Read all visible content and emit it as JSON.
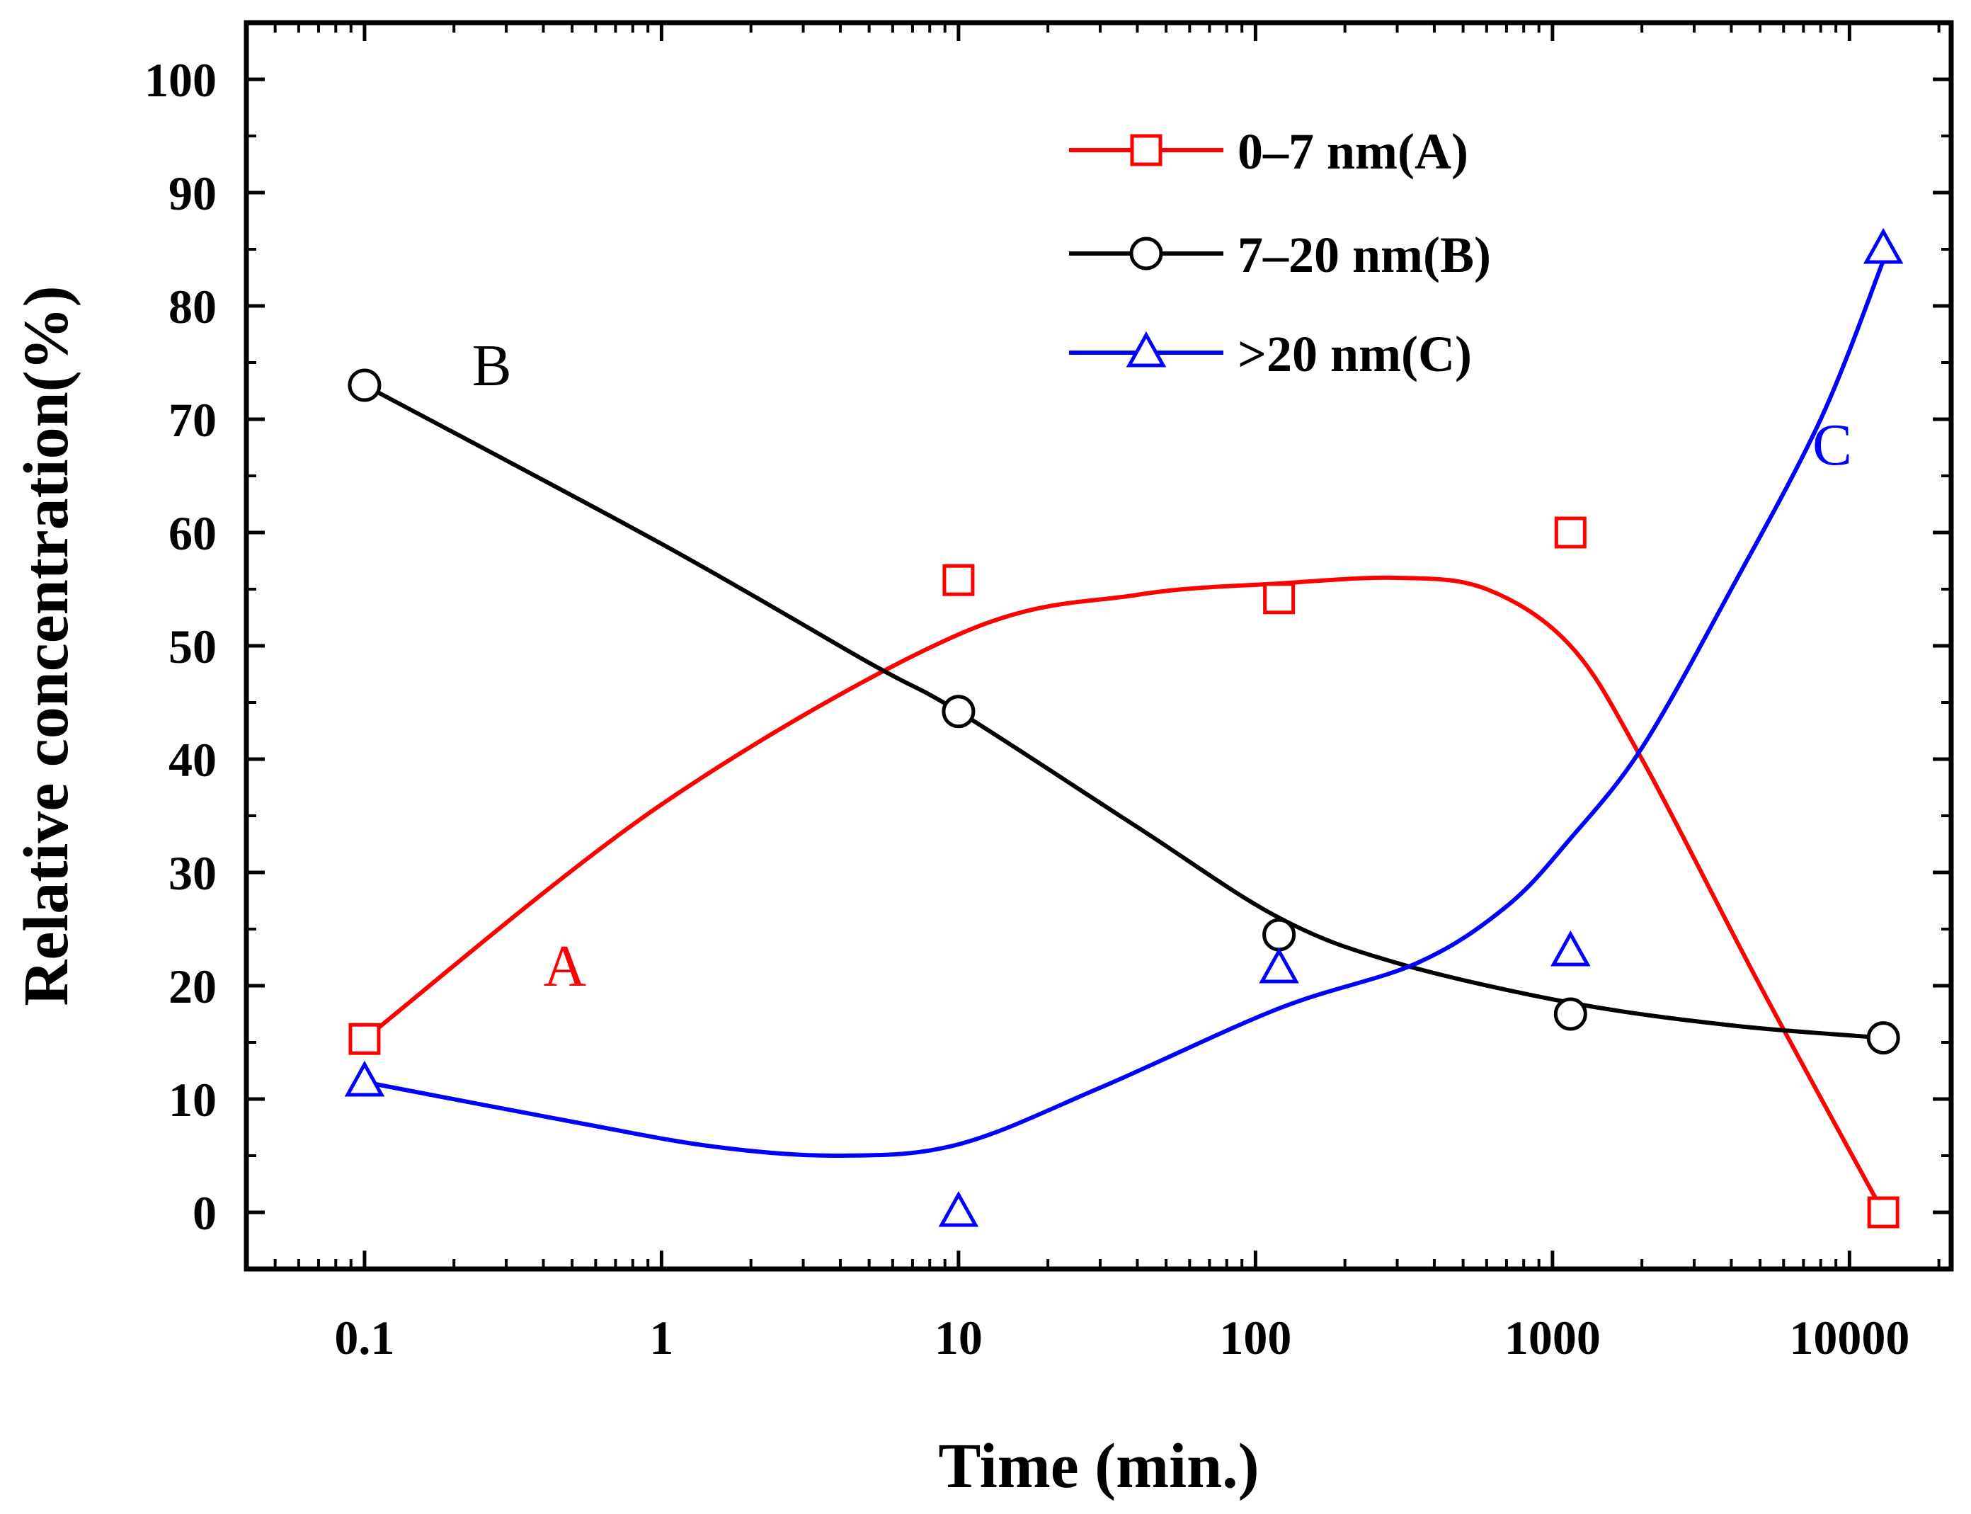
{
  "chart_data": {
    "type": "line",
    "title": "",
    "xlabel": "Time (min.)",
    "ylabel": "Relative concentration(%)",
    "xscale": "log",
    "xlim": [
      0.04,
      22000
    ],
    "ylim": [
      -5,
      105
    ],
    "xticks": [
      {
        "value": 0.1,
        "label": "0.1"
      },
      {
        "value": 1,
        "label": "1"
      },
      {
        "value": 10,
        "label": "10"
      },
      {
        "value": 100,
        "label": "100"
      },
      {
        "value": 1000,
        "label": "1000"
      },
      {
        "value": 10000,
        "label": "10000"
      }
    ],
    "yticks": [
      {
        "value": 0,
        "label": "0"
      },
      {
        "value": 10,
        "label": "10"
      },
      {
        "value": 20,
        "label": "20"
      },
      {
        "value": 30,
        "label": "30"
      },
      {
        "value": 40,
        "label": "40"
      },
      {
        "value": 50,
        "label": "50"
      },
      {
        "value": 60,
        "label": "60"
      },
      {
        "value": 70,
        "label": "70"
      },
      {
        "value": 80,
        "label": "80"
      },
      {
        "value": 90,
        "label": "90"
      },
      {
        "value": 100,
        "label": "100"
      }
    ],
    "legend_position": "top-right",
    "series": [
      {
        "name": "0–7 nm(A)",
        "curve_label": "A",
        "color": "#ff0000",
        "marker": "square",
        "x": [
          0.1,
          10,
          120,
          1150,
          13000
        ],
        "y": [
          15.3,
          55.8,
          54.2,
          60,
          0
        ],
        "fit_curve": [
          [
            0.1,
            15.3
          ],
          [
            1,
            36
          ],
          [
            10,
            51
          ],
          [
            40,
            54.5
          ],
          [
            120,
            55.5
          ],
          [
            300,
            56
          ],
          [
            600,
            55
          ],
          [
            1150,
            50
          ],
          [
            2000,
            40
          ],
          [
            5000,
            20
          ],
          [
            13000,
            0
          ]
        ]
      },
      {
        "name": "7–20 nm(B)",
        "curve_label": "B",
        "color": "#000000",
        "marker": "circle",
        "x": [
          0.1,
          10,
          120,
          1150,
          13000
        ],
        "y": [
          73,
          44.2,
          24.5,
          17.5,
          15.4
        ],
        "fit_curve": [
          [
            0.1,
            73
          ],
          [
            1,
            59
          ],
          [
            5,
            48.5
          ],
          [
            10,
            44.2
          ],
          [
            40,
            34
          ],
          [
            120,
            26
          ],
          [
            300,
            22
          ],
          [
            1150,
            18.5
          ],
          [
            4000,
            16.5
          ],
          [
            13000,
            15.4
          ]
        ]
      },
      {
        "name": ">20 nm(C)",
        "curve_label": "C",
        "color": "#0000ff",
        "marker": "triangle",
        "x": [
          0.1,
          10,
          120,
          1150,
          13000
        ],
        "y": [
          11.5,
          0,
          21.5,
          23,
          85
        ],
        "fit_curve": [
          [
            0.1,
            11.5
          ],
          [
            0.5,
            8
          ],
          [
            1.5,
            5.8
          ],
          [
            4,
            5
          ],
          [
            10,
            6
          ],
          [
            30,
            11
          ],
          [
            120,
            18
          ],
          [
            350,
            22
          ],
          [
            700,
            27
          ],
          [
            1150,
            33
          ],
          [
            2000,
            41
          ],
          [
            4000,
            55
          ],
          [
            8000,
            70
          ],
          [
            13000,
            84
          ]
        ]
      }
    ]
  }
}
